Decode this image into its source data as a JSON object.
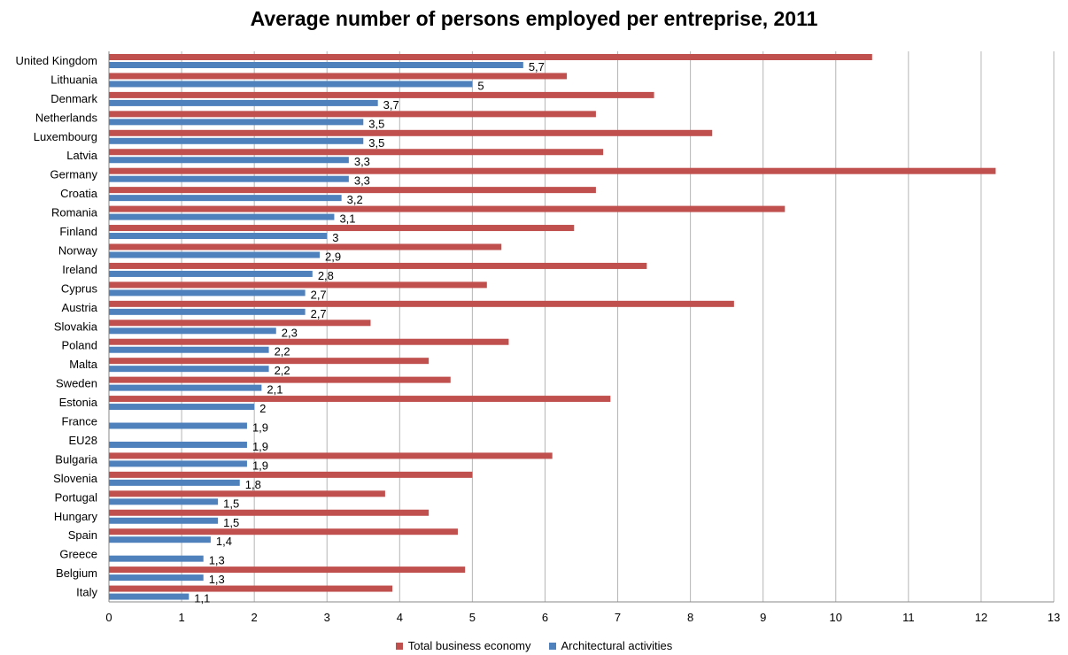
{
  "chart_data": {
    "type": "bar",
    "orientation": "horizontal",
    "title": "Average number of persons employed per entreprise, 2011",
    "xlabel": "",
    "ylabel": "",
    "xlim": [
      0,
      13
    ],
    "x_ticks": [
      "0",
      "1",
      "2",
      "3",
      "4",
      "5",
      "6",
      "7",
      "8",
      "9",
      "10",
      "11",
      "12",
      "13"
    ],
    "grid": "vertical",
    "legend_position": "bottom",
    "categories": [
      "United Kingdom",
      "Lithuania",
      "Denmark",
      "Netherlands",
      "Luxembourg",
      "Latvia",
      "Germany",
      "Croatia",
      "Romania",
      "Finland",
      "Norway",
      "Ireland",
      "Cyprus",
      "Austria",
      "Slovakia",
      "Poland",
      "Malta",
      "Sweden",
      "Estonia",
      "France",
      "EU28",
      "Bulgaria",
      "Slovenia",
      "Portugal",
      "Hungary",
      "Spain",
      "Greece",
      "Belgium",
      "Italy"
    ],
    "series": [
      {
        "name": "Total business economy",
        "color": "#C0504D",
        "values": [
          10.5,
          6.3,
          7.5,
          6.7,
          8.3,
          6.8,
          12.2,
          6.7,
          9.3,
          6.4,
          5.4,
          7.4,
          5.2,
          8.6,
          3.6,
          5.5,
          4.4,
          4.7,
          6.9,
          null,
          null,
          6.1,
          5.0,
          3.8,
          4.4,
          4.8,
          null,
          4.9,
          3.9
        ]
      },
      {
        "name": "Architectural activities",
        "color": "#4F81BD",
        "values": [
          5.7,
          5,
          3.7,
          3.5,
          3.5,
          3.3,
          3.3,
          3.2,
          3.1,
          3,
          2.9,
          2.8,
          2.7,
          2.7,
          2.3,
          2.2,
          2.2,
          2.1,
          2,
          1.9,
          1.9,
          1.9,
          1.8,
          1.5,
          1.5,
          1.4,
          1.3,
          1.3,
          1.1
        ],
        "data_labels": [
          "5,7",
          "5",
          "3,7",
          "3,5",
          "3,5",
          "3,3",
          "3,3",
          "3,2",
          "3,1",
          "3",
          "2,9",
          "2,8",
          "2,7",
          "2,7",
          "2,3",
          "2,2",
          "2,2",
          "2,1",
          "2",
          "1,9",
          "1,9",
          "1,9",
          "1,8",
          "1,5",
          "1,5",
          "1,4",
          "1,3",
          "1,3",
          "1,1"
        ]
      }
    ]
  }
}
